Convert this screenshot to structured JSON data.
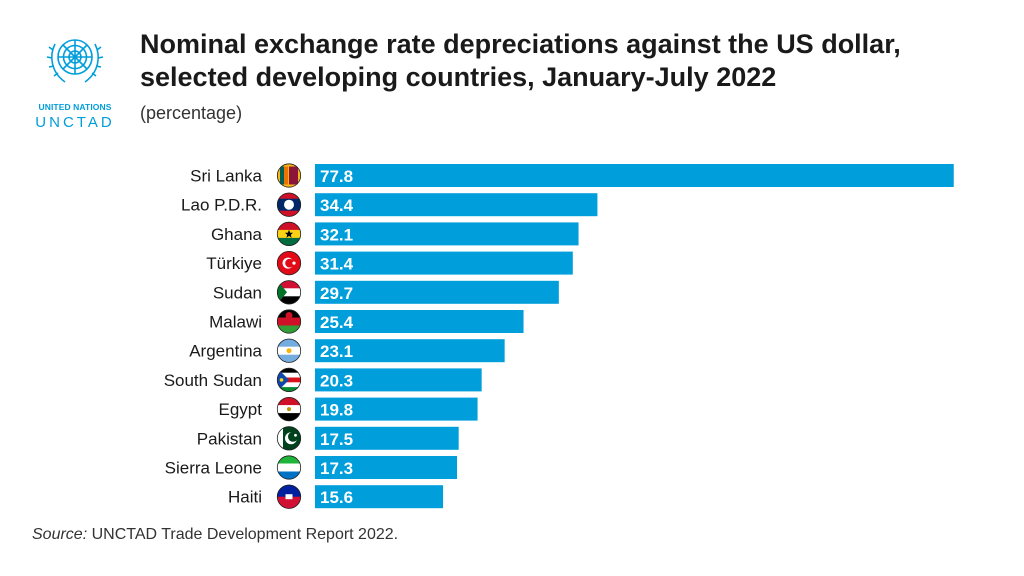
{
  "header": {
    "title_line1": "Nominal exchange rate depreciations against the US dollar,",
    "title_line2": "selected developing countries, January-July 2022",
    "subtitle": "(percentage)"
  },
  "logo": {
    "line1": "UNITED NATIONS",
    "line2": "UNCTAD",
    "icon": "un-emblem-icon"
  },
  "source": {
    "label": "Source:",
    "text": " UNCTAD Trade Development Report 2022."
  },
  "colors": {
    "bar": "#009edb",
    "brand": "#009edb"
  },
  "chart_data": {
    "type": "bar",
    "orientation": "horizontal",
    "categories": [
      "Sri Lanka",
      "Lao P.D.R.",
      "Ghana",
      "Türkiye",
      "Sudan",
      "Malawi",
      "Argentina",
      "South Sudan",
      "Egypt",
      "Pakistan",
      "Sierra Leone",
      "Haiti"
    ],
    "values": [
      77.8,
      34.4,
      32.1,
      31.4,
      29.7,
      25.4,
      23.1,
      20.3,
      19.8,
      17.5,
      17.3,
      15.6
    ],
    "flag_icons": [
      "sri-lanka-flag-icon",
      "laos-flag-icon",
      "ghana-flag-icon",
      "turkiye-flag-icon",
      "sudan-flag-icon",
      "malawi-flag-icon",
      "argentina-flag-icon",
      "south-sudan-flag-icon",
      "egypt-flag-icon",
      "pakistan-flag-icon",
      "sierra-leone-flag-icon",
      "haiti-flag-icon"
    ],
    "data_labels": true,
    "grid": false
  }
}
